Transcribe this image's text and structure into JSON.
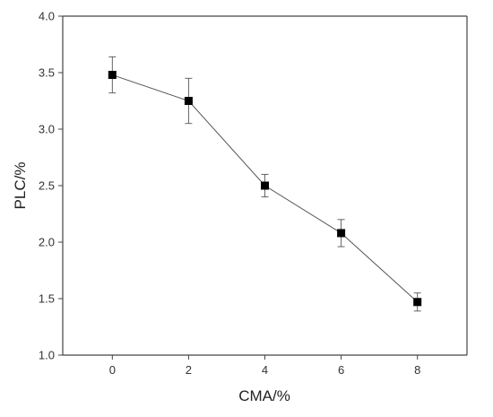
{
  "chart_data": {
    "type": "line",
    "title": "",
    "xlabel": "CMA/%",
    "ylabel": "PLC/%",
    "xlim": [
      -1.3,
      9.3
    ],
    "ylim": [
      1.0,
      4.0
    ],
    "x_ticks": [
      "0",
      "2",
      "4",
      "6",
      "8"
    ],
    "y_ticks": [
      "1.0",
      "1.5",
      "2.0",
      "2.5",
      "3.0",
      "3.5",
      "4.0"
    ],
    "grid": false,
    "legend": "none",
    "series": [
      {
        "marker": "square",
        "color": "#000000",
        "line_color": "#555555",
        "x": [
          0,
          2,
          4,
          6,
          8
        ],
        "y": [
          3.48,
          3.25,
          2.5,
          2.08,
          1.47
        ],
        "error": [
          0.16,
          0.2,
          0.1,
          0.12,
          0.08
        ]
      }
    ]
  }
}
